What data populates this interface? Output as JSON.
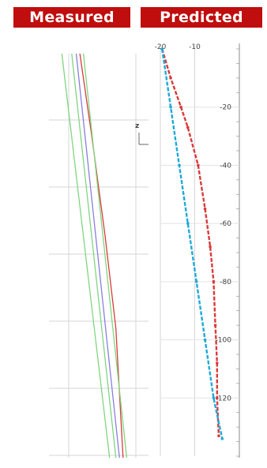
{
  "headers": {
    "measured": "Measured",
    "predicted": "Predicted"
  },
  "colors": {
    "header_bg": "#c00d0d",
    "header_text": "#ffffff",
    "red_profile": "#d93a3a",
    "blue_profile": "#1fa9d8",
    "green_line": "#7fd67f",
    "purple_line": "#8a7de0",
    "grid": "#d6d6d6"
  },
  "axis_label": "z",
  "chart_data": [
    {
      "type": "line",
      "panel": "measured",
      "title": "Measured",
      "note": "Straight measured profile lines; no printed scale",
      "series": [
        {
          "color": "#7fd67f",
          "points": [
            [
              0.02,
              0.0
            ],
            [
              0.55,
              1.0
            ]
          ]
        },
        {
          "color": "#7fd67f",
          "points": [
            [
              0.13,
              0.0
            ],
            [
              0.62,
              1.0
            ]
          ]
        },
        {
          "color": "#8a7de0",
          "points": [
            [
              0.18,
              0.0
            ],
            [
              0.66,
              1.0
            ]
          ]
        },
        {
          "color": "#d93a3a",
          "points": [
            [
              0.22,
              0.0
            ],
            [
              0.35,
              0.2
            ],
            [
              0.5,
              0.45
            ],
            [
              0.62,
              0.68
            ],
            [
              0.7,
              1.0
            ]
          ]
        },
        {
          "color": "#7fd67f",
          "points": [
            [
              0.26,
              0.0
            ],
            [
              0.74,
              1.0
            ]
          ]
        }
      ]
    },
    {
      "type": "line",
      "panel": "predicted",
      "title": "Predicted",
      "x_ticks": [
        "-20",
        "-10"
      ],
      "y_ticks": [
        "-20",
        "-40",
        "-60",
        "-80",
        "-100",
        "-120"
      ],
      "ylim": [
        0,
        -140
      ],
      "series": [
        {
          "color": "#d93a3a",
          "style": "dashed-with-markers",
          "x": [
            -19.5,
            -17,
            -14,
            -12,
            -9,
            -7,
            -5.5,
            -4.5,
            -4,
            -3.5,
            -3.5,
            -3
          ],
          "y": [
            0,
            -10,
            -20,
            -27,
            -40,
            -55,
            -68,
            -80,
            -95,
            -108,
            -120,
            -133
          ]
        },
        {
          "color": "#1fa9d8",
          "style": "dashed-with-markers",
          "x": [
            -19.5,
            -17,
            -14.5,
            -12,
            -9.5,
            -7,
            -4.5,
            -2
          ],
          "y": [
            0,
            -20,
            -40,
            -60,
            -80,
            -100,
            -120,
            -134
          ]
        }
      ]
    }
  ]
}
